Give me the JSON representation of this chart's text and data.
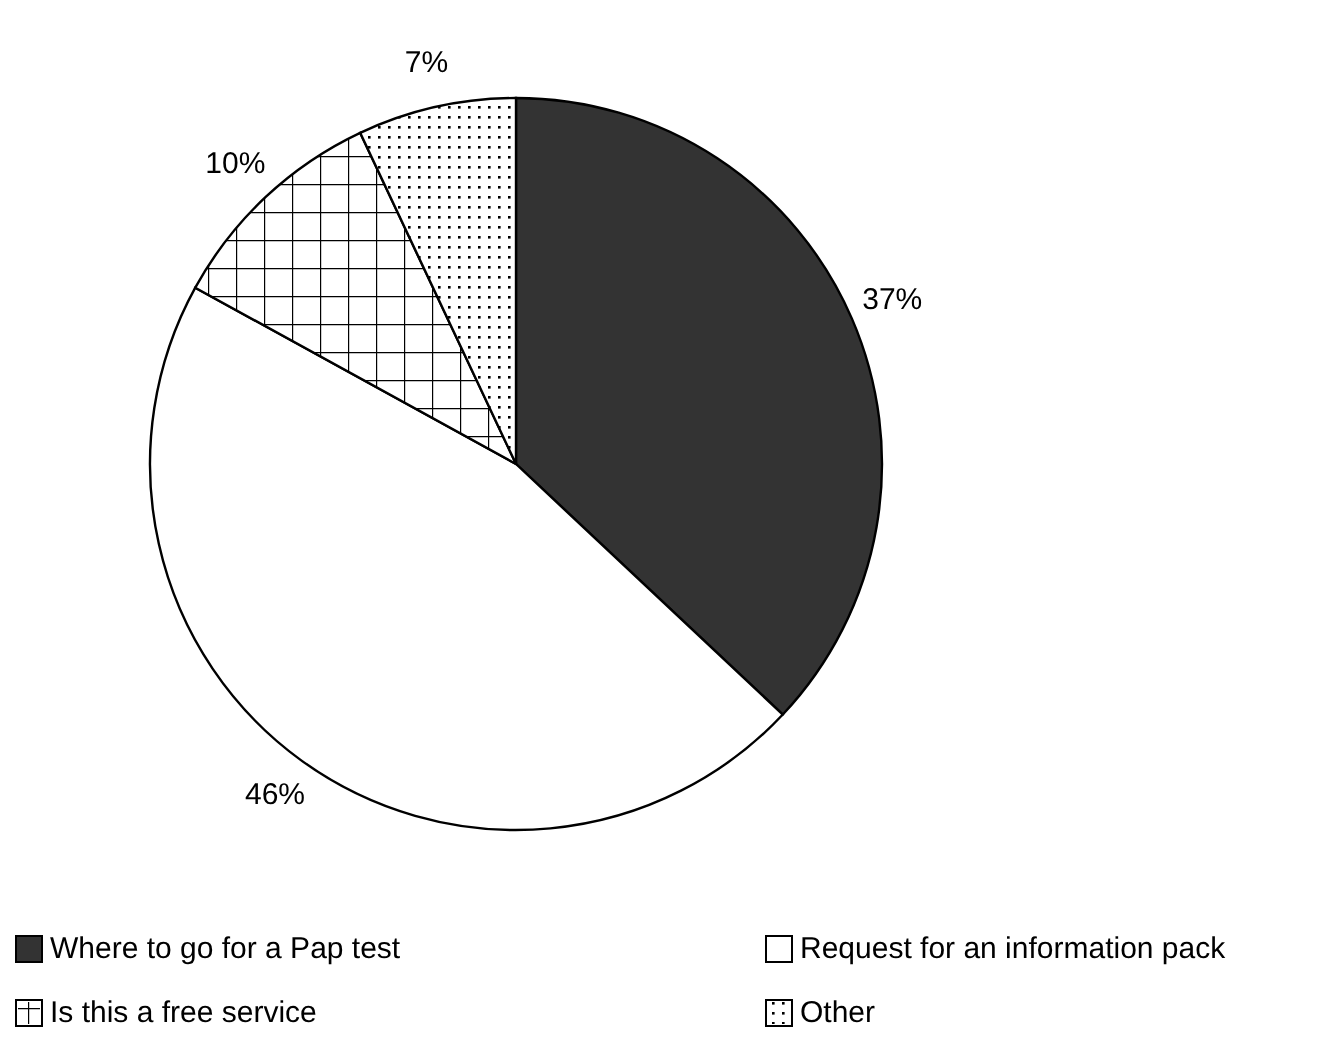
{
  "chart_data": {
    "type": "pie",
    "categories": [
      "Where to go for a Pap test",
      "Request for an information pack",
      "Is this a free service",
      "Other"
    ],
    "values": [
      37,
      46,
      10,
      7
    ],
    "colors": [
      "#333333",
      "#ffffff",
      "#ffffff",
      "#ffffff"
    ],
    "value_labels": [
      "37%",
      "46%",
      "10%",
      "7%"
    ],
    "legend": "bottom"
  }
}
